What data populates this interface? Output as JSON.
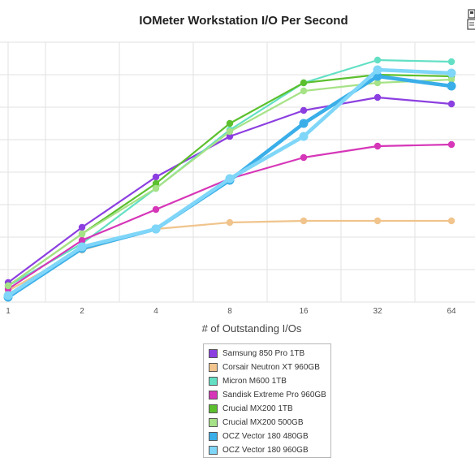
{
  "chart_data": {
    "type": "line",
    "title": "IOMeter Workstation I/O Per Second",
    "xlabel": "# of Outstanding I/Os",
    "ylabel": "",
    "categories": [
      "1",
      "2",
      "4",
      "8",
      "16",
      "32",
      "64"
    ],
    "grid": true,
    "legend_position": "bottom",
    "series": [
      {
        "name": "Samsung 850 Pro 1TB",
        "color": "#8c3fe0",
        "values": [
          6,
          23,
          38.5,
          51,
          59,
          63,
          61
        ]
      },
      {
        "name": "Corsair Neutron XT 960GB",
        "color": "#f0c48c",
        "values": [
          3.5,
          16,
          22.5,
          24.5,
          25,
          25,
          25
        ]
      },
      {
        "name": "Micron M600 1TB",
        "color": "#63e0c4",
        "values": [
          5,
          18,
          35,
          53,
          67.5,
          74.5,
          74
        ]
      },
      {
        "name": "Sandisk Extreme Pro 960GB",
        "color": "#d636b8",
        "values": [
          4,
          19,
          28.5,
          38,
          44.5,
          48,
          48.5
        ]
      },
      {
        "name": "Crucial MX200 1TB",
        "color": "#5cc02e",
        "values": [
          5,
          21,
          36.5,
          55,
          67.5,
          70,
          69.5
        ]
      },
      {
        "name": "Crucial MX200 500GB",
        "color": "#a6e286",
        "values": [
          5,
          21,
          35,
          52.5,
          65,
          67.5,
          68.5
        ]
      },
      {
        "name": "OCZ Vector 180 480GB",
        "color": "#3aaee8",
        "values": [
          1.5,
          16.5,
          22.5,
          37.5,
          55,
          69.5,
          66.5
        ]
      },
      {
        "name": "OCZ Vector 180 960GB",
        "color": "#7fd6f8",
        "values": [
          2,
          17,
          22.5,
          38,
          51,
          71.5,
          70.5
        ]
      }
    ]
  }
}
